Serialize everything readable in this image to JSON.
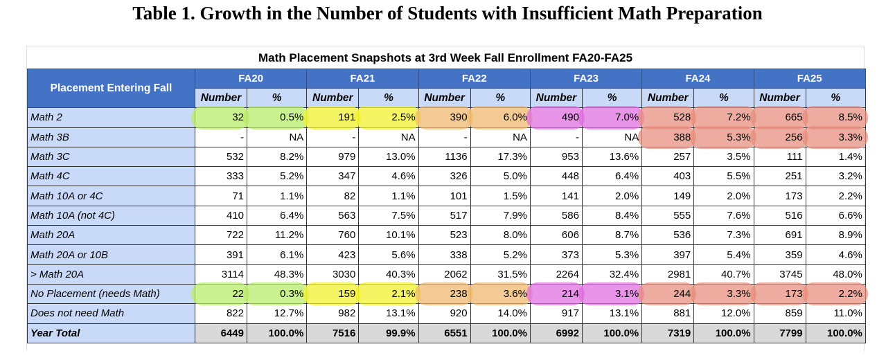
{
  "title": "Table 1. Growth in the Number of Students with Insufficient Math Preparation",
  "subtitle": "Math Placement Snapshots at 3rd Week Fall Enrollment FA20-FA25",
  "corner_header": "Placement Entering Fall",
  "terms": [
    "FA20",
    "FA21",
    "FA22",
    "FA23",
    "FA24",
    "FA25"
  ],
  "sub_headers": {
    "number": "Number",
    "pct": "%"
  },
  "highlight_colors": {
    "FA20": "#b8ec6a",
    "FA21": "#f2f230",
    "FA22": "#f0b870",
    "FA23": "#e070e0",
    "FA24": "#e89080",
    "FA25": "#e89080"
  },
  "rows": [
    {
      "label": "Math 2",
      "cells": [
        [
          "32",
          "0.5%"
        ],
        [
          "191",
          "2.5%"
        ],
        [
          "390",
          "6.0%"
        ],
        [
          "490",
          "7.0%"
        ],
        [
          "528",
          "7.2%"
        ],
        [
          "665",
          "8.5%"
        ]
      ],
      "highlight": [
        0,
        1,
        2,
        3,
        4,
        5
      ]
    },
    {
      "label": "Math 3B",
      "cells": [
        [
          "-",
          "NA"
        ],
        [
          "-",
          "NA"
        ],
        [
          "-",
          "NA"
        ],
        [
          "-",
          "NA"
        ],
        [
          "388",
          "5.3%"
        ],
        [
          "256",
          "3.3%"
        ]
      ],
      "highlight": [
        4,
        5
      ]
    },
    {
      "label": "Math 3C",
      "cells": [
        [
          "532",
          "8.2%"
        ],
        [
          "979",
          "13.0%"
        ],
        [
          "1136",
          "17.3%"
        ],
        [
          "953",
          "13.6%"
        ],
        [
          "257",
          "3.5%"
        ],
        [
          "111",
          "1.4%"
        ]
      ],
      "highlight": []
    },
    {
      "label": "Math 4C",
      "cells": [
        [
          "333",
          "5.2%"
        ],
        [
          "347",
          "4.6%"
        ],
        [
          "326",
          "5.0%"
        ],
        [
          "448",
          "6.4%"
        ],
        [
          "403",
          "5.5%"
        ],
        [
          "251",
          "3.2%"
        ]
      ],
      "highlight": []
    },
    {
      "label": "Math 10A or 4C",
      "cells": [
        [
          "71",
          "1.1%"
        ],
        [
          "82",
          "1.1%"
        ],
        [
          "101",
          "1.5%"
        ],
        [
          "141",
          "2.0%"
        ],
        [
          "149",
          "2.0%"
        ],
        [
          "173",
          "2.2%"
        ]
      ],
      "highlight": []
    },
    {
      "label": "Math 10A (not 4C)",
      "cells": [
        [
          "410",
          "6.4%"
        ],
        [
          "563",
          "7.5%"
        ],
        [
          "517",
          "7.9%"
        ],
        [
          "586",
          "8.4%"
        ],
        [
          "555",
          "7.6%"
        ],
        [
          "516",
          "6.6%"
        ]
      ],
      "highlight": []
    },
    {
      "label": "Math 20A",
      "cells": [
        [
          "722",
          "11.2%"
        ],
        [
          "760",
          "10.1%"
        ],
        [
          "523",
          "8.0%"
        ],
        [
          "606",
          "8.7%"
        ],
        [
          "536",
          "7.3%"
        ],
        [
          "691",
          "8.9%"
        ]
      ],
      "highlight": []
    },
    {
      "label": "Math 20A or 10B",
      "cells": [
        [
          "391",
          "6.1%"
        ],
        [
          "423",
          "5.6%"
        ],
        [
          "338",
          "5.2%"
        ],
        [
          "373",
          "5.3%"
        ],
        [
          "397",
          "5.4%"
        ],
        [
          "359",
          "4.6%"
        ]
      ],
      "highlight": []
    },
    {
      "label": "> Math 20A",
      "cells": [
        [
          "3114",
          "48.3%"
        ],
        [
          "3030",
          "40.3%"
        ],
        [
          "2062",
          "31.5%"
        ],
        [
          "2264",
          "32.4%"
        ],
        [
          "2981",
          "40.7%"
        ],
        [
          "3745",
          "48.0%"
        ]
      ],
      "highlight": []
    },
    {
      "label": "No Placement (needs Math)",
      "cells": [
        [
          "22",
          "0.3%"
        ],
        [
          "159",
          "2.1%"
        ],
        [
          "238",
          "3.6%"
        ],
        [
          "214",
          "3.1%"
        ],
        [
          "244",
          "3.3%"
        ],
        [
          "173",
          "2.2%"
        ]
      ],
      "highlight": [
        0,
        1,
        2,
        3,
        4,
        5
      ]
    },
    {
      "label": "Does not need Math",
      "cells": [
        [
          "822",
          "12.7%"
        ],
        [
          "982",
          "13.1%"
        ],
        [
          "920",
          "14.0%"
        ],
        [
          "917",
          "13.1%"
        ],
        [
          "881",
          "12.0%"
        ],
        [
          "859",
          "11.0%"
        ]
      ],
      "highlight": []
    },
    {
      "label": "Year Total",
      "cells": [
        [
          "6449",
          "100.0%"
        ],
        [
          "7516",
          "99.9%"
        ],
        [
          "6551",
          "100.0%"
        ],
        [
          "6992",
          "100.0%"
        ],
        [
          "7319",
          "100.0%"
        ],
        [
          "7799",
          "100.0%"
        ]
      ],
      "highlight": [],
      "total": true
    }
  ]
}
